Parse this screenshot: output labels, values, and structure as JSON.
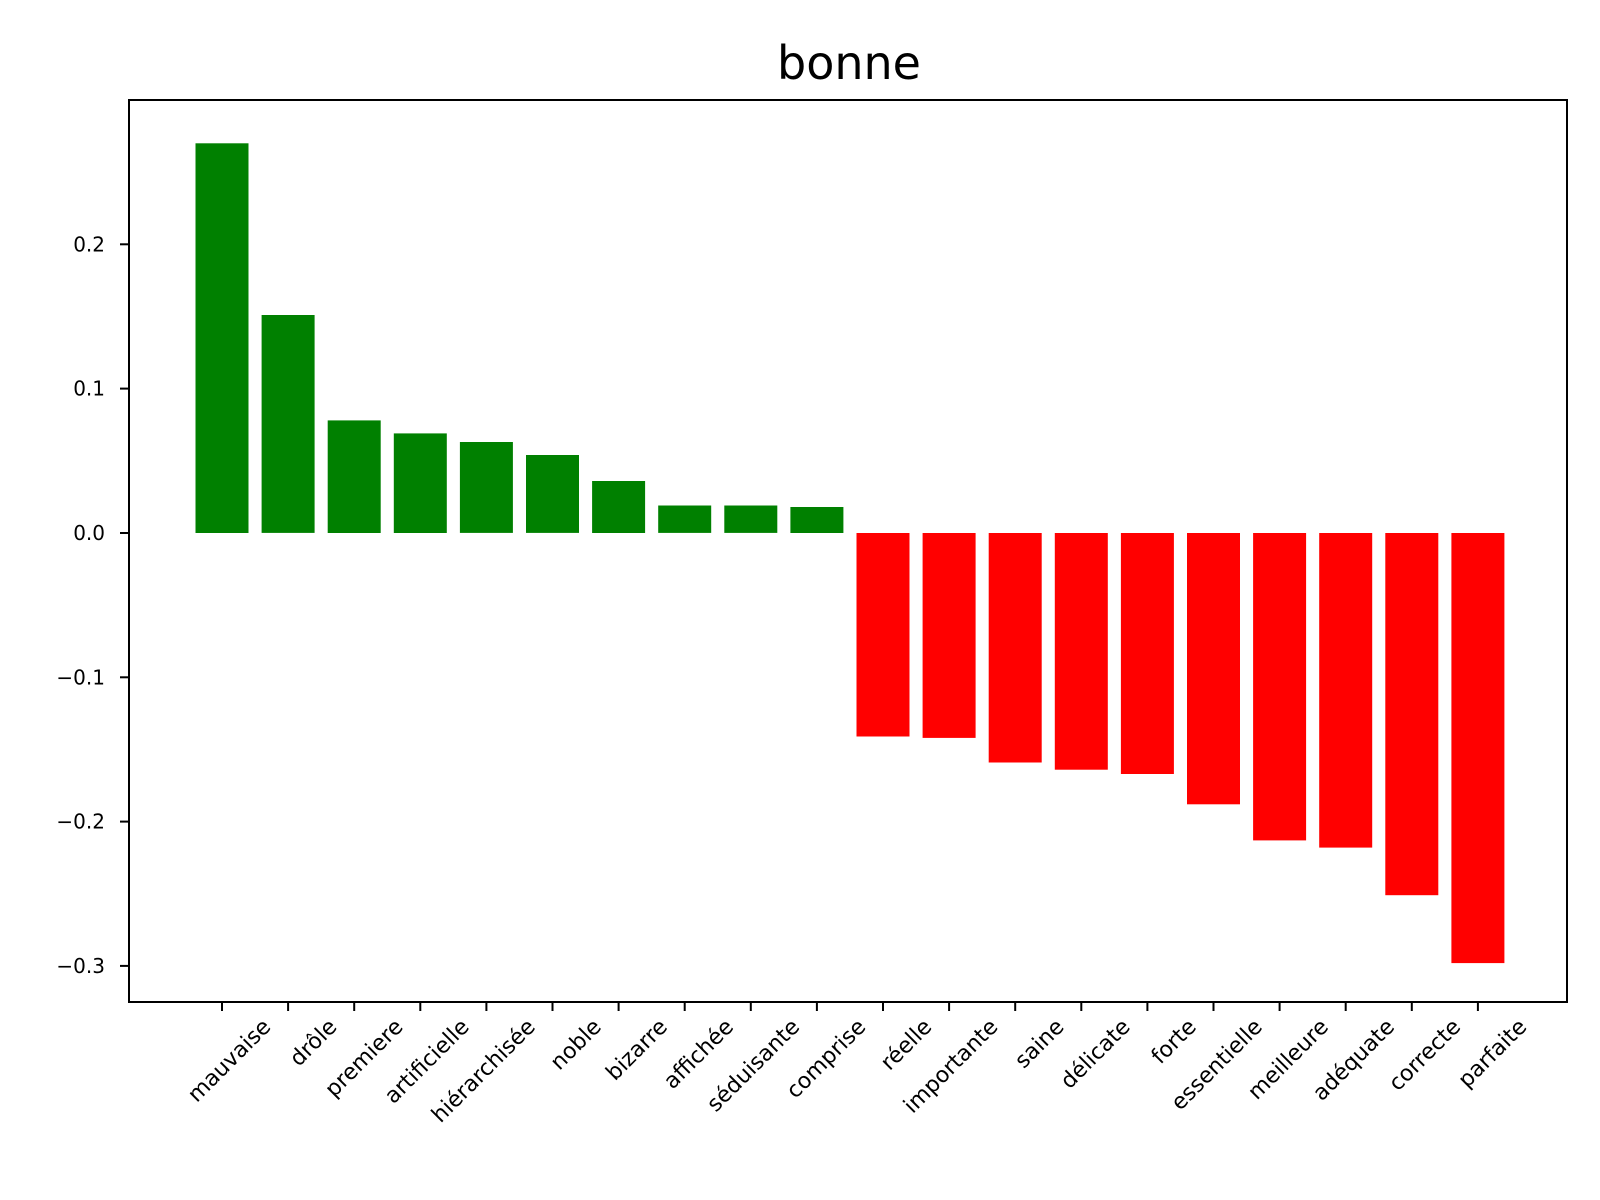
{
  "chart_data": {
    "type": "bar",
    "title": "bonne",
    "xlabel": "",
    "ylabel": "",
    "categories": [
      "mauvaise",
      "drôle",
      "premiere",
      "artificielle",
      "hiérarchisée",
      "noble",
      "bizarre",
      "affichée",
      "séduisante",
      "comprise",
      "réelle",
      "importante",
      "saine",
      "délicate",
      "forte",
      "essentielle",
      "meilleure",
      "adéquate",
      "correcte",
      "parfaite"
    ],
    "values": [
      0.27,
      0.151,
      0.078,
      0.069,
      0.063,
      0.054,
      0.036,
      0.019,
      0.019,
      0.018,
      -0.141,
      -0.142,
      -0.159,
      -0.164,
      -0.167,
      -0.188,
      -0.213,
      -0.218,
      -0.251,
      -0.298
    ],
    "ylim": [
      -0.325,
      0.3
    ],
    "yticks": [
      0.2,
      0.1,
      0.0,
      -0.1,
      -0.2,
      -0.3
    ],
    "ytick_labels": [
      "0.2",
      "0.1",
      "0.0",
      "−0.1",
      "−0.2",
      "−0.3"
    ],
    "grid": false,
    "colors": {
      "positive": "#008000",
      "negative": "#ff0000"
    }
  }
}
